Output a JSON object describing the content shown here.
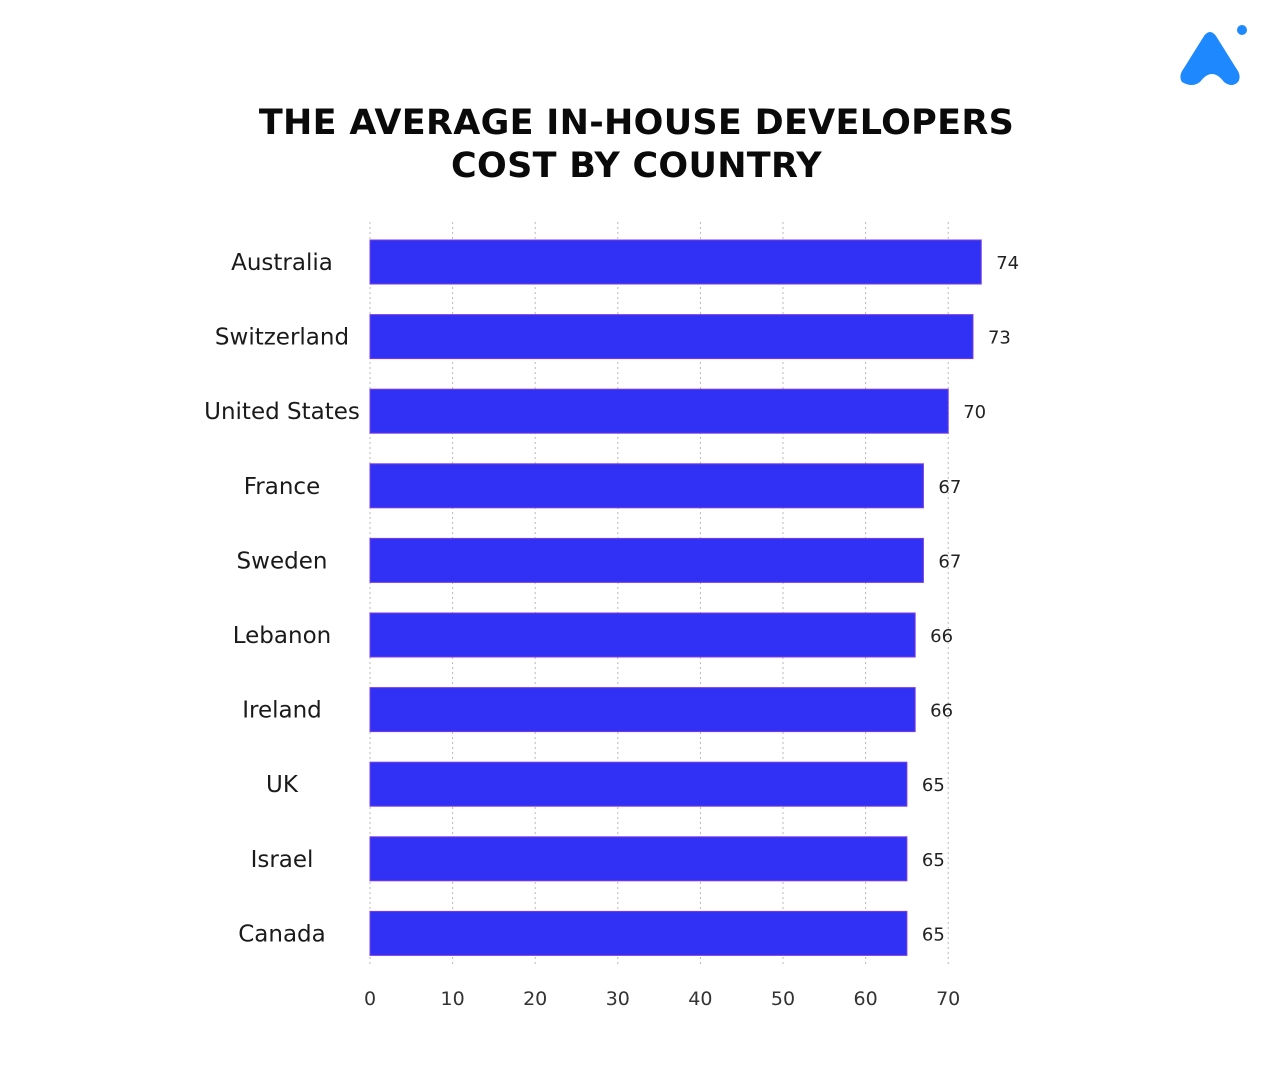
{
  "title_lines": [
    "THE AVERAGE IN-HOUSE DEVELOPERS",
    "COST BY COUNTRY"
  ],
  "logo": {
    "icon": "brand-logo-icon",
    "color": "#1e88ff"
  },
  "chart_data": {
    "type": "bar",
    "orientation": "horizontal",
    "title": "THE AVERAGE IN-HOUSE DEVELOPERS COST BY COUNTRY",
    "categories": [
      "Australia",
      "Switzerland",
      "United States",
      "France",
      "Sweden",
      "Lebanon",
      "Ireland",
      "UK",
      "Israel",
      "Canada"
    ],
    "values": [
      74,
      73,
      70,
      67,
      67,
      66,
      66,
      65,
      65,
      65
    ],
    "data_labels": [
      "74",
      "73",
      "70",
      "67",
      "67",
      "66",
      "66",
      "65",
      "65",
      "65"
    ],
    "xticks": [
      0,
      10,
      20,
      30,
      40,
      50,
      60,
      70
    ],
    "xlim": [
      0,
      74
    ],
    "grid": "vertical dotted",
    "bar_color": "#3131f5"
  }
}
